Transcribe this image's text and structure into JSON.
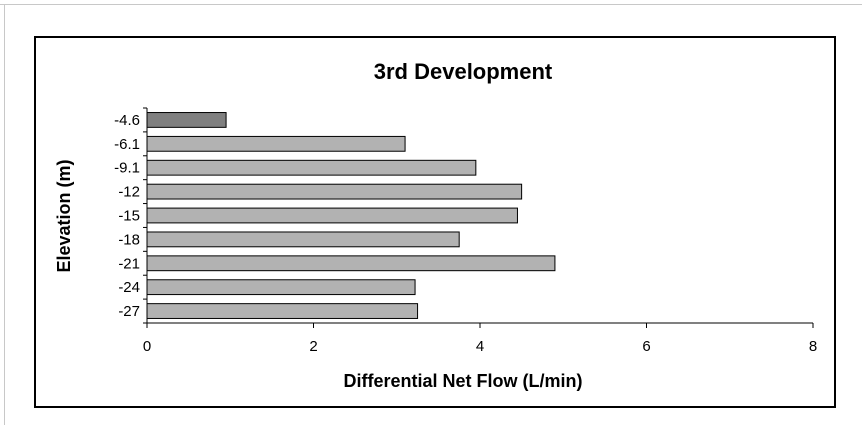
{
  "chart_data": {
    "type": "bar",
    "orientation": "horizontal",
    "title": "3rd Development",
    "xlabel": "Differential Net Flow (L/min)",
    "ylabel": "Elevation (m)",
    "categories": [
      "-4.6",
      "-6.1",
      "-9.1",
      "-12",
      "-15",
      "-18",
      "-21",
      "-24",
      "-27"
    ],
    "values": [
      0.95,
      3.1,
      3.95,
      4.5,
      4.45,
      3.75,
      4.9,
      3.22,
      3.25
    ],
    "xlim": [
      0,
      8
    ],
    "xticks": [
      "0",
      "2",
      "4",
      "6",
      "8"
    ],
    "grid": false,
    "colors": {
      "first_bar": "#808080",
      "bars": "#b2b2b2",
      "bar_edge": "#000000"
    }
  }
}
